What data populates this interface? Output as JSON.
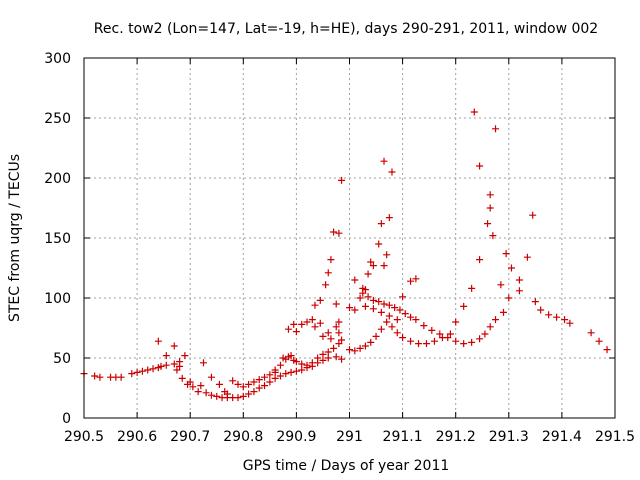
{
  "chart_data": {
    "type": "scatter",
    "title": "Rec. tow2 (Lon=147, Lat=-19, h=HE), days 290-291, 2011, window 002",
    "xlabel": "GPS time / Days of year 2011",
    "ylabel": "STEC from uqrg / TECUs",
    "xlim": [
      290.5,
      291.5
    ],
    "ylim": [
      0,
      300
    ],
    "xticks": [
      "290.5",
      "290.6",
      "290.7",
      "290.8",
      "290.9",
      "291",
      "291.1",
      "291.2",
      "291.3",
      "291.4",
      "291.5"
    ],
    "xtick_values": [
      290.5,
      290.6,
      290.7,
      290.8,
      290.9,
      291.0,
      291.1,
      291.2,
      291.3,
      291.4,
      291.5
    ],
    "yticks": [
      "0",
      "50",
      "100",
      "150",
      "200",
      "250",
      "300"
    ],
    "ytick_values": [
      0,
      50,
      100,
      150,
      200,
      250,
      300
    ],
    "grid": true,
    "marker": "+",
    "color": "#cc0000",
    "points": [
      [
        290.5,
        37
      ],
      [
        290.52,
        35
      ],
      [
        290.53,
        34
      ],
      [
        290.55,
        34
      ],
      [
        290.56,
        34
      ],
      [
        290.57,
        34
      ],
      [
        290.59,
        37
      ],
      [
        290.6,
        38
      ],
      [
        290.61,
        39
      ],
      [
        290.62,
        40
      ],
      [
        290.63,
        41
      ],
      [
        290.64,
        42
      ],
      [
        290.645,
        43
      ],
      [
        290.655,
        44
      ],
      [
        290.67,
        45
      ],
      [
        290.68,
        47
      ],
      [
        290.64,
        64
      ],
      [
        290.655,
        52
      ],
      [
        290.67,
        60
      ],
      [
        290.68,
        43
      ],
      [
        290.69,
        52
      ],
      [
        290.675,
        40
      ],
      [
        290.685,
        33
      ],
      [
        290.695,
        28
      ],
      [
        290.7,
        30
      ],
      [
        290.705,
        26
      ],
      [
        290.715,
        22
      ],
      [
        290.73,
        21
      ],
      [
        290.74,
        19
      ],
      [
        290.75,
        18
      ],
      [
        290.76,
        17
      ],
      [
        290.77,
        17
      ],
      [
        290.78,
        17
      ],
      [
        290.79,
        17
      ],
      [
        290.8,
        18
      ],
      [
        290.81,
        20
      ],
      [
        290.82,
        22
      ],
      [
        290.83,
        25
      ],
      [
        290.84,
        27
      ],
      [
        290.85,
        30
      ],
      [
        290.72,
        27
      ],
      [
        290.725,
        46
      ],
      [
        290.74,
        34
      ],
      [
        290.755,
        28
      ],
      [
        290.765,
        22
      ],
      [
        290.77,
        20
      ],
      [
        290.78,
        31
      ],
      [
        290.79,
        28
      ],
      [
        290.8,
        26
      ],
      [
        290.81,
        28
      ],
      [
        290.82,
        30
      ],
      [
        290.83,
        32
      ],
      [
        290.84,
        34
      ],
      [
        290.85,
        36
      ],
      [
        290.86,
        38
      ],
      [
        290.86,
        40
      ],
      [
        290.87,
        44
      ],
      [
        290.875,
        50
      ],
      [
        290.88,
        49
      ],
      [
        290.885,
        51
      ],
      [
        290.89,
        52
      ],
      [
        290.895,
        48
      ],
      [
        290.9,
        47
      ],
      [
        290.91,
        45
      ],
      [
        290.92,
        44
      ],
      [
        290.93,
        46
      ],
      [
        290.94,
        50
      ],
      [
        290.95,
        53
      ],
      [
        290.96,
        55
      ],
      [
        290.97,
        58
      ],
      [
        290.98,
        62
      ],
      [
        290.885,
        74
      ],
      [
        290.895,
        78
      ],
      [
        290.9,
        72
      ],
      [
        290.91,
        78
      ],
      [
        290.92,
        80
      ],
      [
        290.93,
        82
      ],
      [
        290.935,
        76
      ],
      [
        290.945,
        79
      ],
      [
        290.95,
        68
      ],
      [
        290.96,
        71
      ],
      [
        290.965,
        66
      ],
      [
        290.975,
        76
      ],
      [
        290.98,
        71
      ],
      [
        290.985,
        65
      ],
      [
        290.86,
        33
      ],
      [
        290.87,
        35
      ],
      [
        290.88,
        37
      ],
      [
        290.89,
        38
      ],
      [
        290.9,
        39
      ],
      [
        290.91,
        40
      ],
      [
        290.92,
        42
      ],
      [
        290.93,
        43
      ],
      [
        290.94,
        46
      ],
      [
        290.95,
        48
      ],
      [
        290.96,
        50
      ],
      [
        290.975,
        51
      ],
      [
        290.985,
        49
      ],
      [
        290.935,
        94
      ],
      [
        290.945,
        98
      ],
      [
        290.955,
        111
      ],
      [
        290.96,
        121
      ],
      [
        290.965,
        132
      ],
      [
        290.97,
        155
      ],
      [
        290.98,
        154
      ],
      [
        290.985,
        198
      ],
      [
        290.975,
        95
      ],
      [
        290.98,
        80
      ],
      [
        291.0,
        92
      ],
      [
        291.01,
        90
      ],
      [
        291.02,
        100
      ],
      [
        291.025,
        104
      ],
      [
        291.03,
        107
      ],
      [
        291.035,
        101
      ],
      [
        291.045,
        98
      ],
      [
        291.055,
        97
      ],
      [
        291.065,
        95
      ],
      [
        291.075,
        94
      ],
      [
        291.085,
        92
      ],
      [
        291.095,
        90
      ],
      [
        291.105,
        87
      ],
      [
        291.115,
        84
      ],
      [
        291.125,
        82
      ],
      [
        291.14,
        77
      ],
      [
        291.155,
        73
      ],
      [
        291.17,
        70
      ],
      [
        291.185,
        67
      ],
      [
        291.2,
        64
      ],
      [
        291.215,
        62
      ],
      [
        291.23,
        63
      ],
      [
        291.245,
        66
      ],
      [
        291.255,
        70
      ],
      [
        291.265,
        76
      ],
      [
        291.275,
        82
      ],
      [
        291.29,
        88
      ],
      [
        291.01,
        115
      ],
      [
        291.025,
        108
      ],
      [
        291.035,
        120
      ],
      [
        291.04,
        130
      ],
      [
        291.045,
        127
      ],
      [
        291.055,
        145
      ],
      [
        291.06,
        162
      ],
      [
        291.065,
        127
      ],
      [
        291.07,
        136
      ],
      [
        291.075,
        167
      ],
      [
        291.065,
        214
      ],
      [
        291.08,
        205
      ],
      [
        291.0,
        57
      ],
      [
        291.01,
        56
      ],
      [
        291.02,
        58
      ],
      [
        291.03,
        60
      ],
      [
        291.04,
        63
      ],
      [
        291.05,
        68
      ],
      [
        291.06,
        74
      ],
      [
        291.07,
        80
      ],
      [
        291.08,
        76
      ],
      [
        291.09,
        71
      ],
      [
        291.1,
        67
      ],
      [
        291.115,
        64
      ],
      [
        291.13,
        62
      ],
      [
        291.145,
        62
      ],
      [
        291.16,
        64
      ],
      [
        291.175,
        67
      ],
      [
        291.19,
        70
      ],
      [
        291.03,
        93
      ],
      [
        291.045,
        91
      ],
      [
        291.06,
        88
      ],
      [
        291.075,
        85
      ],
      [
        291.09,
        82
      ],
      [
        291.1,
        101
      ],
      [
        291.115,
        114
      ],
      [
        291.125,
        116
      ],
      [
        291.2,
        80
      ],
      [
        291.215,
        93
      ],
      [
        291.23,
        108
      ],
      [
        291.245,
        132
      ],
      [
        291.26,
        162
      ],
      [
        291.265,
        175
      ],
      [
        291.265,
        186
      ],
      [
        291.27,
        152
      ],
      [
        291.245,
        210
      ],
      [
        291.235,
        255
      ],
      [
        291.275,
        241
      ],
      [
        291.285,
        111
      ],
      [
        291.295,
        137
      ],
      [
        291.305,
        125
      ],
      [
        291.3,
        100
      ],
      [
        291.32,
        106
      ],
      [
        291.32,
        115
      ],
      [
        291.335,
        134
      ],
      [
        291.345,
        169
      ],
      [
        291.35,
        97
      ],
      [
        291.36,
        90
      ],
      [
        291.375,
        86
      ],
      [
        291.39,
        84
      ],
      [
        291.405,
        82
      ],
      [
        291.415,
        79
      ],
      [
        291.455,
        71
      ],
      [
        291.47,
        64
      ],
      [
        291.485,
        57
      ]
    ]
  }
}
